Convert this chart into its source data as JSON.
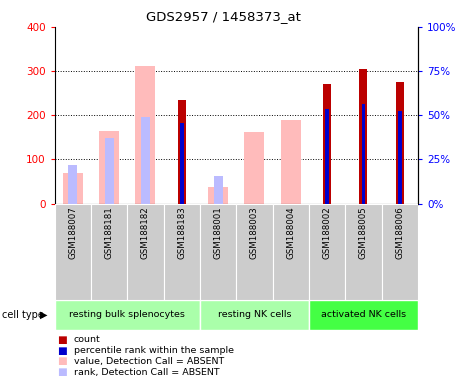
{
  "title": "GDS2957 / 1458373_at",
  "samples": [
    "GSM188007",
    "GSM188181",
    "GSM188182",
    "GSM188183",
    "GSM188001",
    "GSM188003",
    "GSM188004",
    "GSM188002",
    "GSM188005",
    "GSM188006"
  ],
  "cell_types": [
    {
      "label": "resting bulk splenocytes",
      "start": 0,
      "end": 4,
      "color": "#aaffaa"
    },
    {
      "label": "resting NK cells",
      "start": 4,
      "end": 7,
      "color": "#aaffaa"
    },
    {
      "label": "activated NK cells",
      "start": 7,
      "end": 10,
      "color": "#44ff44"
    }
  ],
  "count_values": [
    null,
    null,
    null,
    235,
    null,
    null,
    null,
    270,
    305,
    275
  ],
  "percentile_values": [
    null,
    null,
    null,
    182,
    null,
    null,
    null,
    214,
    226,
    210
  ],
  "value_absent": [
    68,
    165,
    312,
    null,
    38,
    162,
    188,
    null,
    null,
    null
  ],
  "rank_absent": [
    88,
    148,
    197,
    null,
    63,
    null,
    null,
    null,
    null,
    null
  ],
  "ylim": [
    0,
    400
  ],
  "y2lim": [
    0,
    100
  ],
  "yticks": [
    0,
    100,
    200,
    300,
    400
  ],
  "y2ticks": [
    0,
    25,
    50,
    75,
    100
  ],
  "y2ticklabels": [
    "0%",
    "25%",
    "50%",
    "75%",
    "100%"
  ],
  "color_count": "#bb0000",
  "color_percentile": "#0000cc",
  "color_value_absent": "#ffbbbb",
  "color_rank_absent": "#bbbbff",
  "bg_color_samples": "#cccccc",
  "grid_color": "black",
  "pink_bar_width": 0.55,
  "lightblue_bar_width": 0.25,
  "red_bar_width": 0.22,
  "blue_bar_width": 0.1
}
